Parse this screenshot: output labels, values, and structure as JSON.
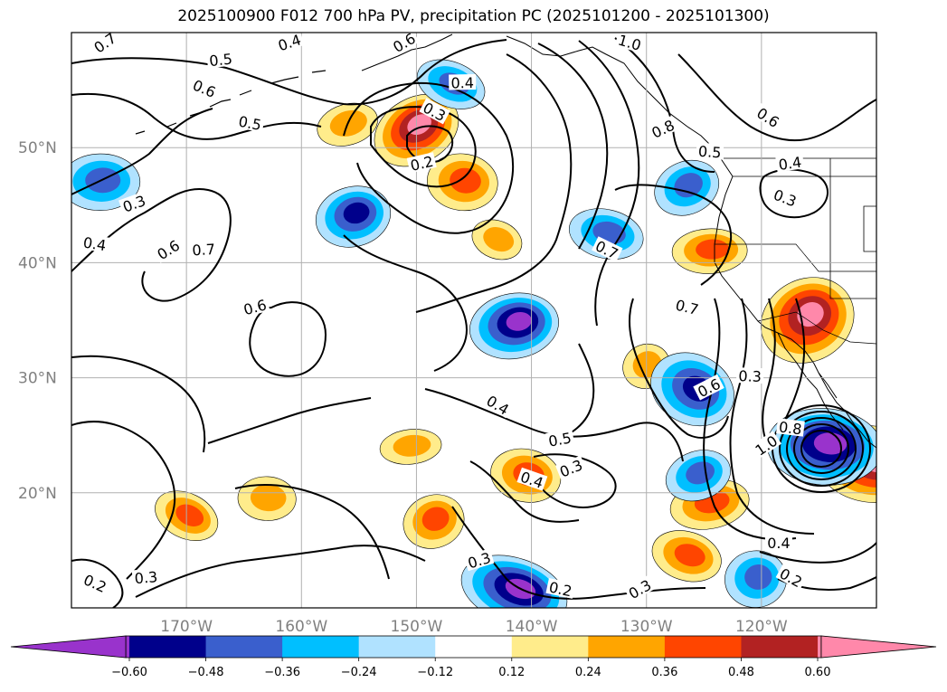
{
  "title": "2025100900 F012 700 hPa PV, precipitation PC (2025101200 - 2025101300)",
  "chart_data": {
    "type": "heatmap",
    "title": "2025100900 F012 700 hPa PV, precipitation PC (2025101200 - 2025101300)",
    "lon_range": [
      -180,
      -110
    ],
    "lat_range": [
      10,
      60
    ],
    "lat_ticks": [
      "50°N",
      "40°N",
      "30°N",
      "20°N"
    ],
    "lat_tick_values": [
      50,
      40,
      30,
      20
    ],
    "lon_ticks": [
      "170°W",
      "160°W",
      "150°W",
      "140°W",
      "130°W",
      "120°W"
    ],
    "lon_tick_values": [
      -170,
      -160,
      -150,
      -140,
      -130,
      -120
    ],
    "grid": true,
    "colorbar": {
      "orientation": "horizontal",
      "extend": "both",
      "tick_labels": [
        "−0.60",
        "−0.48",
        "−0.36",
        "−0.24",
        "−0.12",
        "0.12",
        "0.24",
        "0.36",
        "0.48",
        "0.60"
      ],
      "tick_values": [
        -0.6,
        -0.48,
        -0.36,
        -0.24,
        -0.12,
        0.12,
        0.24,
        0.36,
        0.48,
        0.6
      ],
      "colors": [
        "#9933cc",
        "#00008b",
        "#3a5fcd",
        "#00bfff",
        "#b0e2ff",
        "#ffffff",
        "#ffec8b",
        "#ffa500",
        "#ff4500",
        "#b22222",
        "#ff88aa"
      ]
    },
    "pv_contour_labels": [
      {
        "label": "0.7",
        "lon": -177,
        "lat": 59
      },
      {
        "label": "0.5",
        "lon": -167,
        "lat": 57.5
      },
      {
        "label": "0.6",
        "lon": -168.5,
        "lat": 55
      },
      {
        "label": "0.4",
        "lon": -161,
        "lat": 59
      },
      {
        "label": "0.5",
        "lon": -164.5,
        "lat": 52
      },
      {
        "label": "0.6",
        "lon": -151,
        "lat": 59
      },
      {
        "label": "0.4",
        "lon": -146,
        "lat": 55.5
      },
      {
        "label": "0.3",
        "lon": -148.5,
        "lat": 53
      },
      {
        "label": "0.2",
        "lon": -149.5,
        "lat": 48.5
      },
      {
        "label": "1.0",
        "lon": -131.5,
        "lat": 59
      },
      {
        "label": "0.8",
        "lon": -128.5,
        "lat": 51.5
      },
      {
        "label": "0.5",
        "lon": -124.5,
        "lat": 49.5
      },
      {
        "label": "0.6",
        "lon": -119.5,
        "lat": 52.5
      },
      {
        "label": "0.4",
        "lon": -117.5,
        "lat": 48.5
      },
      {
        "label": "0.3",
        "lon": -118,
        "lat": 45.5
      },
      {
        "label": "0.3",
        "lon": -174.5,
        "lat": 45
      },
      {
        "label": "0.4",
        "lon": -178,
        "lat": 41.5
      },
      {
        "label": "0.6",
        "lon": -171.5,
        "lat": 41
      },
      {
        "label": "0.7",
        "lon": -168.5,
        "lat": 41
      },
      {
        "label": "0.7",
        "lon": -133.5,
        "lat": 41
      },
      {
        "label": "0.6",
        "lon": -164,
        "lat": 36
      },
      {
        "label": "0.7",
        "lon": -126.5,
        "lat": 36
      },
      {
        "label": "0.6",
        "lon": -124.5,
        "lat": 29
      },
      {
        "label": "0.3",
        "lon": -121,
        "lat": 30
      },
      {
        "label": "0.4",
        "lon": -143,
        "lat": 27.5
      },
      {
        "label": "0.5",
        "lon": -137.5,
        "lat": 24.5
      },
      {
        "label": "0.4",
        "lon": -140,
        "lat": 21
      },
      {
        "label": "0.3",
        "lon": -136.5,
        "lat": 22
      },
      {
        "label": "0.8",
        "lon": -117.5,
        "lat": 25.5
      },
      {
        "label": "1.0",
        "lon": -119.5,
        "lat": 24
      },
      {
        "label": "0.3",
        "lon": -173.5,
        "lat": 12.5
      },
      {
        "label": "0.2",
        "lon": -178,
        "lat": 12
      },
      {
        "label": "0.3",
        "lon": -144.5,
        "lat": 14
      },
      {
        "label": "0.2",
        "lon": -137.5,
        "lat": 11.5
      },
      {
        "label": "0.3",
        "lon": -130.5,
        "lat": 11.5
      },
      {
        "label": "0.4",
        "lon": -118.5,
        "lat": 15.5
      },
      {
        "label": "0.2",
        "lon": -117.5,
        "lat": 12.5
      }
    ],
    "precip_anomalies": [
      {
        "sign": "positive",
        "level": 0.48,
        "lon": -150,
        "lat": 51.5
      },
      {
        "sign": "positive",
        "level": 0.36,
        "lon": -146,
        "lat": 47
      },
      {
        "sign": "positive",
        "level": 0.24,
        "lon": -156,
        "lat": 52
      },
      {
        "sign": "positive",
        "level": 0.24,
        "lon": -143,
        "lat": 42
      },
      {
        "sign": "positive",
        "level": 0.36,
        "lon": -124.5,
        "lat": 41
      },
      {
        "sign": "positive",
        "level": 0.24,
        "lon": -130,
        "lat": 31
      },
      {
        "sign": "positive",
        "level": 0.36,
        "lon": -140.5,
        "lat": 21.5
      },
      {
        "sign": "positive",
        "level": 0.36,
        "lon": -124.5,
        "lat": 19
      },
      {
        "sign": "positive",
        "level": 0.36,
        "lon": -170,
        "lat": 18
      },
      {
        "sign": "positive",
        "level": 0.24,
        "lon": -163,
        "lat": 19.5
      },
      {
        "sign": "positive",
        "level": 0.36,
        "lon": -148.5,
        "lat": 17.5
      },
      {
        "sign": "positive",
        "level": 0.36,
        "lon": -126.5,
        "lat": 14.5
      },
      {
        "sign": "positive",
        "level": 0.24,
        "lon": -150.5,
        "lat": 24
      },
      {
        "sign": "positive",
        "level": 0.48,
        "lon": -116,
        "lat": 35
      },
      {
        "sign": "positive",
        "level": 0.48,
        "lon": -110.5,
        "lat": 22.5
      },
      {
        "sign": "negative",
        "level": -0.36,
        "lon": -155.5,
        "lat": 44
      },
      {
        "sign": "negative",
        "level": -0.24,
        "lon": -147,
        "lat": 55.5
      },
      {
        "sign": "negative",
        "level": -0.24,
        "lon": -177.5,
        "lat": 47
      },
      {
        "sign": "negative",
        "level": -0.24,
        "lon": -126.5,
        "lat": 46.5
      },
      {
        "sign": "negative",
        "level": -0.24,
        "lon": -133.5,
        "lat": 42.5
      },
      {
        "sign": "negative",
        "level": -0.48,
        "lon": -141.5,
        "lat": 34.5
      },
      {
        "sign": "negative",
        "level": -0.36,
        "lon": -126,
        "lat": 29
      },
      {
        "sign": "negative",
        "level": -0.48,
        "lon": -114.5,
        "lat": 24
      },
      {
        "sign": "negative",
        "level": -0.24,
        "lon": -125.5,
        "lat": 21.5
      },
      {
        "sign": "negative",
        "level": -0.48,
        "lon": -141.5,
        "lat": 11.5
      },
      {
        "sign": "negative",
        "level": -0.24,
        "lon": -120.5,
        "lat": 12.5
      }
    ]
  }
}
